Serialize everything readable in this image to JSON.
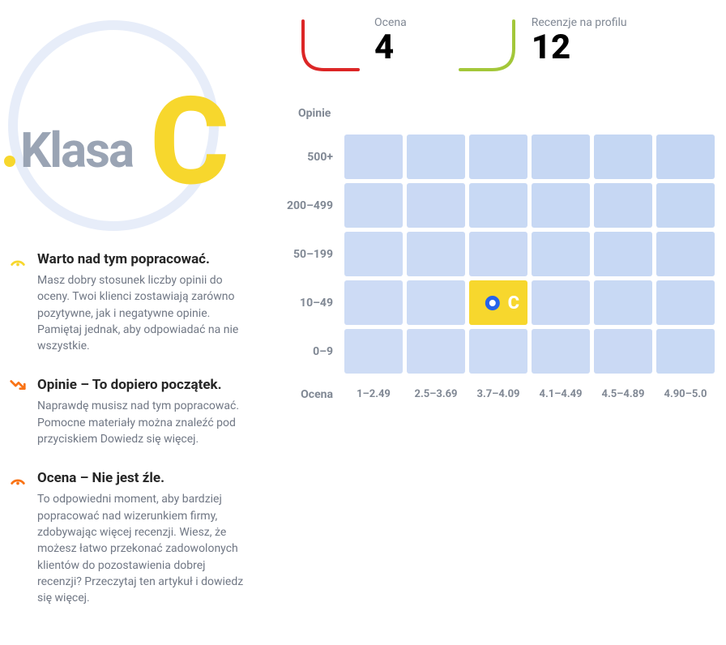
{
  "klasa": {
    "label": "Klasa",
    "letter": "C",
    "letter_color": "#f7d72d",
    "label_color": "#9aa4b4",
    "circle_border_color": "#e7edf9"
  },
  "notes": [
    {
      "icon": "gauge-yellow",
      "icon_color": "#f7d72d",
      "title": "Warto nad tym popracować.",
      "body": "Masz dobry stosunek liczby opinii do oceny. Twoi klienci zostawiają zarówno pozytywne, jak i negatywne opinie. Pamiętaj jednak, aby odpowiadać na nie wszystkie."
    },
    {
      "icon": "trend-down",
      "icon_color": "#f97316",
      "title": "Opinie – To dopiero początek.",
      "body": "Naprawdę musisz nad tym popracować. Pomocne materiały można znaleźć pod przyciskiem Dowiedz się więcej."
    },
    {
      "icon": "gauge-orange",
      "icon_color": "#f97316",
      "title": "Ocena – Nie jest źle.",
      "body": "To odpowiedni moment, aby bardziej popracować nad wizerunkiem firmy, zdobywając więcej recenzji. Wiesz, że możesz łatwo przekonać zadowolonych klientów do pozostawienia dobrej recenzji? Przeczytaj ten artykuł i dowiedz się więcej."
    }
  ],
  "stats": {
    "ocena": {
      "label": "Ocena",
      "value": "4",
      "stroke_color": "#dc2626"
    },
    "recenzje": {
      "label": "Recenzje na profilu",
      "value": "12",
      "stroke_color": "#a3c739"
    }
  },
  "chart": {
    "y_title": "Opinie",
    "x_title": "Ocena",
    "y_labels": [
      "500+",
      "200–499",
      "50–199",
      "10–49",
      "0–9"
    ],
    "x_labels": [
      "1–2.49",
      "2.5–3.69",
      "3.7–4.09",
      "4.1–4.49",
      "4.5–4.89",
      "4.90–5.0"
    ],
    "cell_color": "#cedcf5",
    "cell_color_alt": "#c4d6f3",
    "highlight_color": "#f7d72d",
    "marker": {
      "row": 3,
      "col": 2,
      "letter": "C",
      "dot_border": "#2563eb",
      "dot_fill": "#ffffff"
    },
    "rows": 5,
    "cols": 6
  },
  "text_colors": {
    "muted": "#808894",
    "heading": "#262626"
  }
}
